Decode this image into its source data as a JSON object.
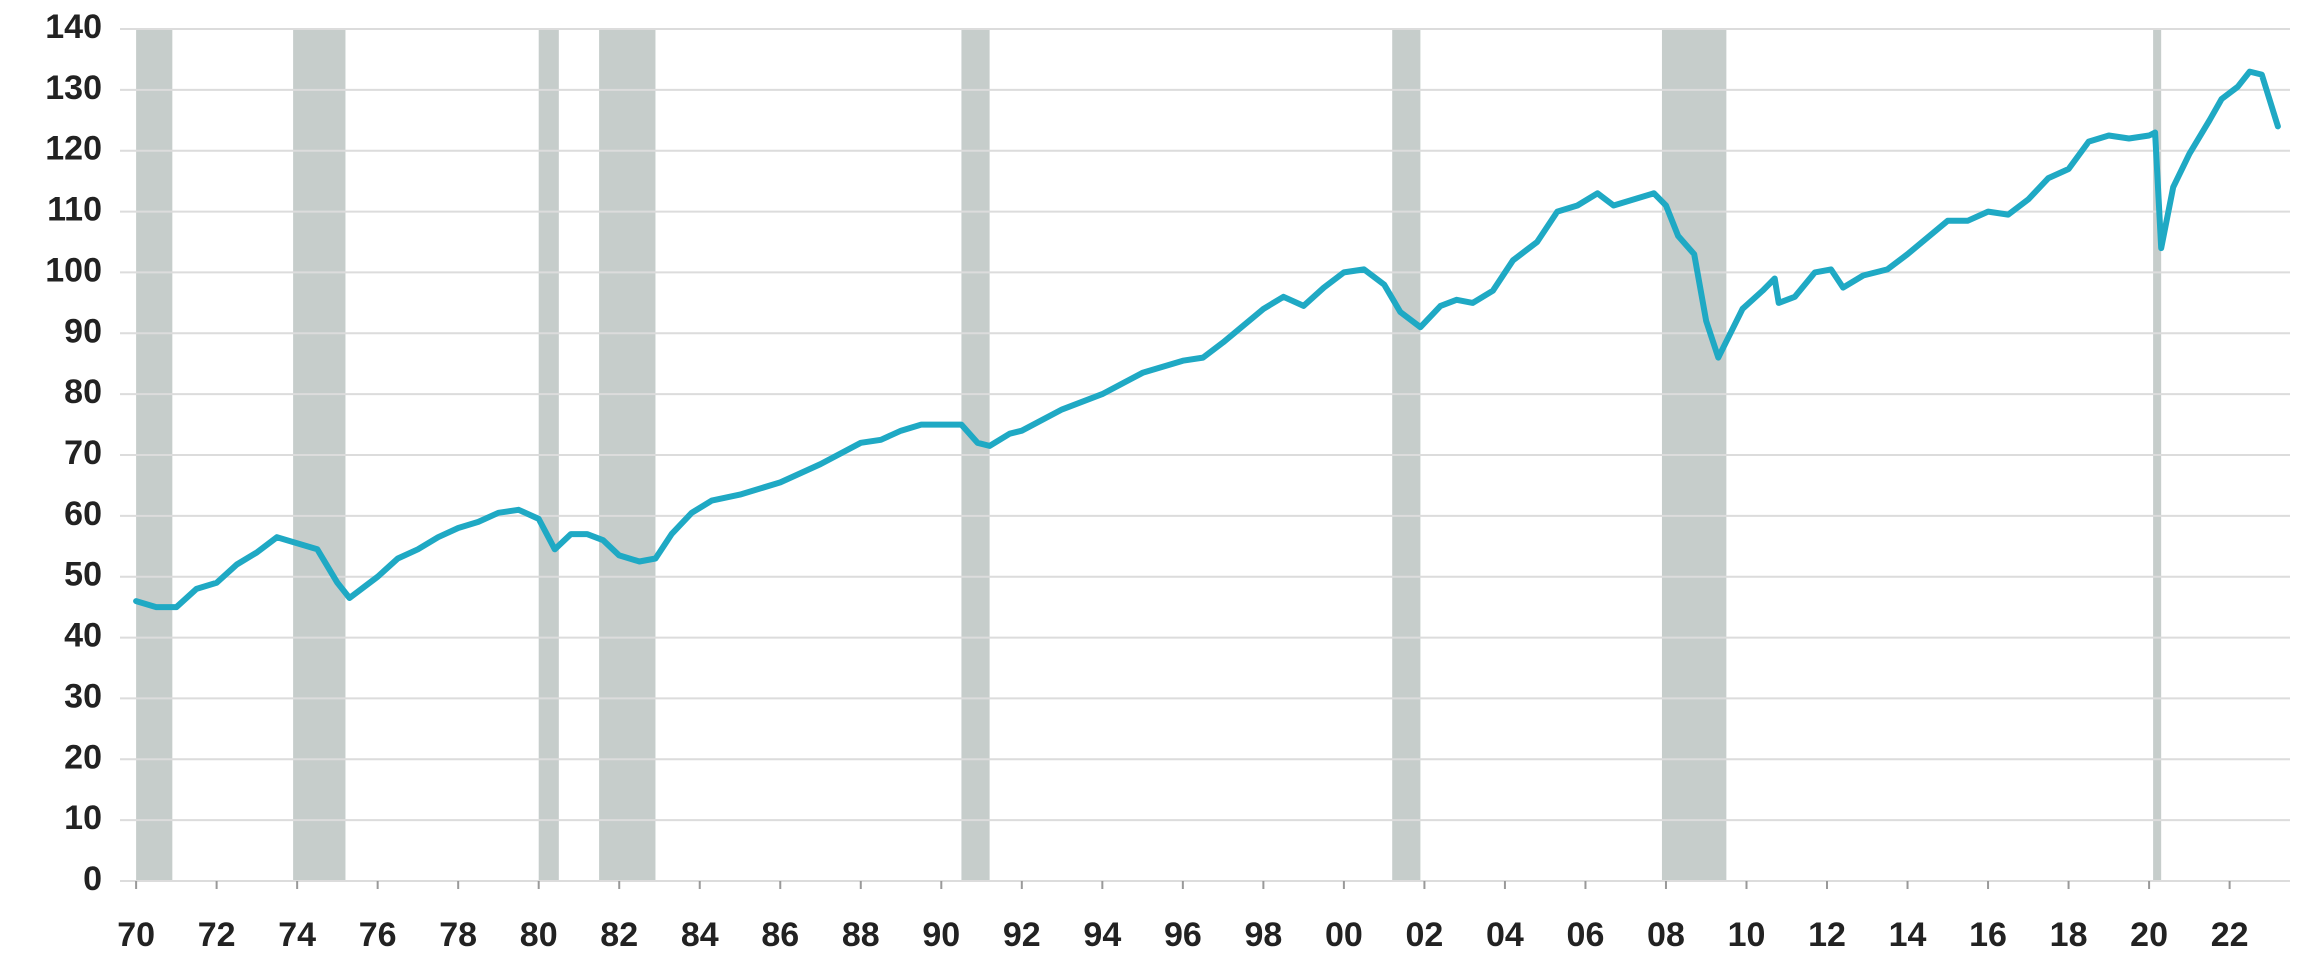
{
  "chart_data": {
    "type": "line",
    "x": [
      1970.0,
      1970.5,
      1971.0,
      1971.5,
      1972.0,
      1972.5,
      1973.0,
      1973.5,
      1974.0,
      1974.5,
      1975.0,
      1975.3,
      1975.7,
      1976.0,
      1976.5,
      1977.0,
      1977.5,
      1978.0,
      1978.5,
      1979.0,
      1979.5,
      1980.0,
      1980.4,
      1980.8,
      1981.2,
      1981.6,
      1982.0,
      1982.5,
      1982.9,
      1983.3,
      1983.8,
      1984.3,
      1985.0,
      1986.0,
      1987.0,
      1988.0,
      1988.5,
      1989.0,
      1989.5,
      1990.0,
      1990.5,
      1990.9,
      1991.2,
      1991.7,
      1992.0,
      1993.0,
      1994.0,
      1995.0,
      1996.0,
      1996.5,
      1997.0,
      1998.0,
      1998.5,
      1999.0,
      1999.5,
      2000.0,
      2000.5,
      2001.0,
      2001.4,
      2001.9,
      2002.4,
      2002.8,
      2003.2,
      2003.7,
      2004.2,
      2004.8,
      2005.3,
      2005.8,
      2006.3,
      2006.7,
      2007.2,
      2007.7,
      2008.0,
      2008.3,
      2008.7,
      2009.0,
      2009.3,
      2009.6,
      2009.9,
      2010.4,
      2010.7,
      2010.8,
      2011.2,
      2011.7,
      2012.1,
      2012.4,
      2012.9,
      2013.5,
      2014.0,
      2015.0,
      2015.5,
      2016.0,
      2016.5,
      2017.0,
      2017.5,
      2018.0,
      2018.5,
      2019.0,
      2019.5,
      2020.0,
      2020.15,
      2020.3,
      2020.6,
      2021.0,
      2021.5,
      2021.8,
      2022.2,
      2022.5,
      2022.8,
      2023.2
    ],
    "series": [
      {
        "color": "#1fa9c4",
        "values": [
          46,
          45,
          45,
          48,
          49,
          52,
          54,
          56.5,
          55.5,
          54.5,
          49,
          46.5,
          48.5,
          50,
          53,
          54.5,
          56.5,
          58,
          59,
          60.5,
          61,
          59.5,
          54.5,
          57,
          57,
          56,
          53.5,
          52.5,
          53,
          57,
          60.5,
          62.5,
          63.5,
          65.5,
          68.5,
          72,
          72.5,
          74,
          75,
          75,
          75,
          72,
          71.5,
          73.5,
          74,
          77.5,
          80,
          83.5,
          85.5,
          86,
          88.5,
          94,
          96,
          94.5,
          97.5,
          100,
          100.5,
          98,
          93.5,
          91,
          94.5,
          95.5,
          95,
          97,
          102,
          105,
          110,
          111,
          113,
          111,
          112,
          113,
          111,
          106,
          103,
          92,
          86,
          90,
          94,
          97,
          99,
          95,
          96,
          100,
          100.5,
          97.5,
          99.5,
          100.5,
          103,
          108.5,
          108.5,
          110,
          109.5,
          112,
          115.5,
          117,
          121.5,
          122.5,
          122,
          122.5,
          123,
          104,
          114,
          119.5,
          125,
          128.5,
          130.5,
          133,
          132.5,
          124
        ]
      }
    ],
    "recessions": [
      [
        1970.0,
        1970.9
      ],
      [
        1973.9,
        1975.2
      ],
      [
        1980.0,
        1980.5
      ],
      [
        1981.5,
        1982.9
      ],
      [
        1990.5,
        1991.2
      ],
      [
        2001.2,
        2001.9
      ],
      [
        2007.9,
        2009.5
      ],
      [
        2020.1,
        2020.3
      ]
    ],
    "recession_color": "#c6cdcb",
    "xlim": [
      1969.6,
      2023.5
    ],
    "xticks": [
      {
        "value": 1970,
        "label": "70"
      },
      {
        "value": 1972,
        "label": "72"
      },
      {
        "value": 1974,
        "label": "74"
      },
      {
        "value": 1976,
        "label": "76"
      },
      {
        "value": 1978,
        "label": "78"
      },
      {
        "value": 1980,
        "label": "80"
      },
      {
        "value": 1982,
        "label": "82"
      },
      {
        "value": 1984,
        "label": "84"
      },
      {
        "value": 1986,
        "label": "86"
      },
      {
        "value": 1988,
        "label": "88"
      },
      {
        "value": 1990,
        "label": "90"
      },
      {
        "value": 1992,
        "label": "92"
      },
      {
        "value": 1994,
        "label": "94"
      },
      {
        "value": 1996,
        "label": "96"
      },
      {
        "value": 1998,
        "label": "98"
      },
      {
        "value": 2000,
        "label": "00"
      },
      {
        "value": 2002,
        "label": "02"
      },
      {
        "value": 2004,
        "label": "04"
      },
      {
        "value": 2006,
        "label": "06"
      },
      {
        "value": 2008,
        "label": "08"
      },
      {
        "value": 2010,
        "label": "10"
      },
      {
        "value": 2012,
        "label": "12"
      },
      {
        "value": 2014,
        "label": "14"
      },
      {
        "value": 2016,
        "label": "16"
      },
      {
        "value": 2018,
        "label": "18"
      },
      {
        "value": 2020,
        "label": "20"
      },
      {
        "value": 2022,
        "label": "22"
      }
    ],
    "ylim": [
      0,
      140
    ],
    "yticks": [
      0,
      10,
      20,
      30,
      40,
      50,
      60,
      70,
      80,
      90,
      100,
      110,
      120,
      130,
      140
    ],
    "grid": true
  }
}
